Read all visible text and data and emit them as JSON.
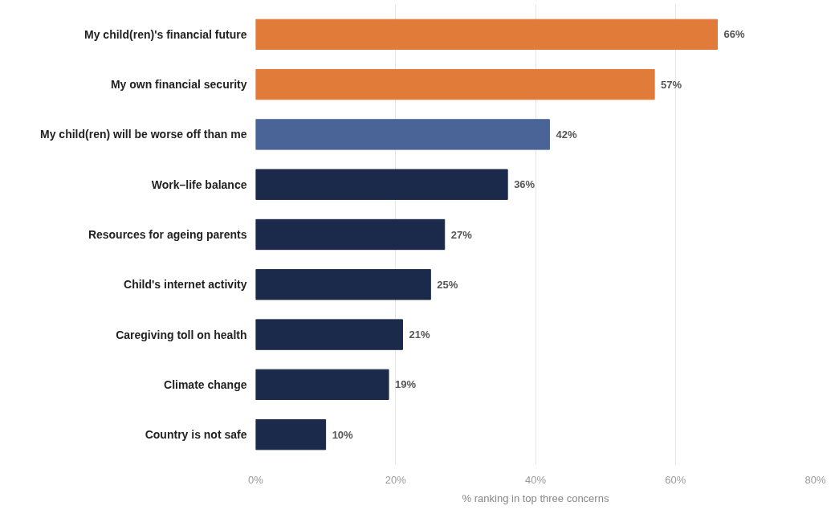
{
  "chart_data": {
    "type": "bar",
    "orientation": "horizontal",
    "xlabel": "% ranking in top three concerns",
    "categories": [
      "My child(ren)'s financial future",
      "My own financial security",
      "My child(ren) will be worse off than me",
      "Work–life balance",
      "Resources for ageing parents",
      "Child's internet activity",
      "Caregiving toll on health",
      "Climate change",
      "Country is not safe"
    ],
    "values": [
      66,
      57,
      42,
      36,
      27,
      25,
      21,
      19,
      10
    ],
    "colors": [
      "#e07b39",
      "#e07b39",
      "#4a6497",
      "#1b2a4a",
      "#1b2a4a",
      "#1b2a4a",
      "#1b2a4a",
      "#1b2a4a",
      "#1b2a4a"
    ],
    "value_labels": [
      "66%",
      "57%",
      "42%",
      "36%",
      "27%",
      "25%",
      "21%",
      "19%",
      "10%"
    ],
    "xlim": [
      0,
      80
    ],
    "xticks": [
      {
        "value": 0,
        "label": "0%"
      },
      {
        "value": 20,
        "label": "20%"
      },
      {
        "value": 40,
        "label": "40%"
      },
      {
        "value": 60,
        "label": "60%"
      },
      {
        "value": 80,
        "label": "80%"
      }
    ],
    "grid": "x"
  }
}
